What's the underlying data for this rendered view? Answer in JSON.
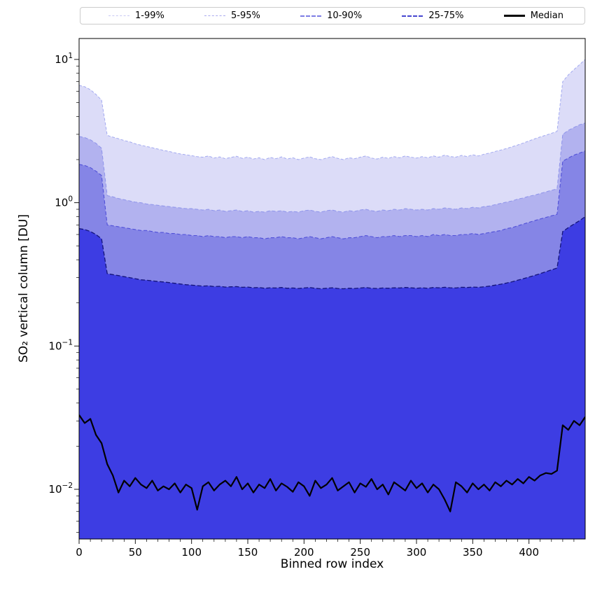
{
  "figure": {
    "legend": [
      {
        "label": "1-99%",
        "color": "#c9c9f4",
        "sample_style": "dashed",
        "sample_width": 1
      },
      {
        "label": "5-95%",
        "color": "#a9a9ee",
        "sample_style": "dashed",
        "sample_width": 1
      },
      {
        "label": "10-90%",
        "color": "#7d7de4",
        "sample_style": "dashed",
        "sample_width": 2
      },
      {
        "label": "25-75%",
        "color": "#4646d0",
        "sample_style": "dashed",
        "sample_width": 2
      },
      {
        "label": "Median",
        "color": "#000000",
        "sample_style": "solid",
        "sample_width": 3
      }
    ]
  },
  "chart_data": {
    "type": "area",
    "title": "",
    "xlabel": "Binned row index",
    "ylabel": "SO₂ vertical column [DU]",
    "y_scale": "log",
    "xlim": [
      0,
      450
    ],
    "ylim": [
      0.0045,
      14
    ],
    "x_ticks": [
      0,
      50,
      100,
      150,
      200,
      250,
      300,
      350,
      400
    ],
    "x_minor_step": 10,
    "y_ticks_exp": [
      -2,
      -1,
      0,
      1
    ],
    "x_start": 0,
    "x_step": 5,
    "series": [
      {
        "name": "p99",
        "band": "1-99%",
        "fill": "#dcdcf8",
        "line": "#a3aaf0",
        "dash": "4 2.5",
        "line_width": 1,
        "values": [
          6.6,
          6.45,
          6.15,
          5.7,
          5.2,
          2.95,
          2.87,
          2.8,
          2.72,
          2.66,
          2.58,
          2.52,
          2.47,
          2.42,
          2.37,
          2.32,
          2.28,
          2.23,
          2.19,
          2.16,
          2.13,
          2.1,
          2.08,
          2.12,
          2.05,
          2.09,
          2.03,
          2.07,
          2.11,
          2.04,
          2.08,
          2.02,
          2.06,
          2.0,
          2.07,
          2.03,
          2.09,
          2.02,
          2.06,
          2.0,
          2.05,
          2.09,
          2.03,
          2.0,
          2.05,
          2.1,
          2.04,
          2.0,
          2.06,
          2.03,
          2.08,
          2.12,
          2.05,
          2.02,
          2.08,
          2.04,
          2.1,
          2.06,
          2.12,
          2.08,
          2.05,
          2.1,
          2.06,
          2.12,
          2.08,
          2.15,
          2.1,
          2.08,
          2.14,
          2.1,
          2.16,
          2.12,
          2.18,
          2.22,
          2.28,
          2.33,
          2.39,
          2.46,
          2.53,
          2.61,
          2.7,
          2.79,
          2.88,
          2.96,
          3.05,
          3.15,
          7.0,
          7.8,
          8.5,
          9.2,
          10.0
        ]
      },
      {
        "name": "p95",
        "band": "5-95%",
        "fill": "#b2b2ef",
        "line": "#8d93ea",
        "dash": "5 3",
        "line_width": 1,
        "values": [
          2.9,
          2.85,
          2.75,
          2.6,
          2.4,
          1.12,
          1.1,
          1.07,
          1.05,
          1.03,
          1.01,
          1.0,
          0.98,
          0.97,
          0.96,
          0.95,
          0.94,
          0.93,
          0.92,
          0.91,
          0.91,
          0.9,
          0.89,
          0.9,
          0.88,
          0.89,
          0.87,
          0.88,
          0.89,
          0.87,
          0.88,
          0.86,
          0.87,
          0.86,
          0.88,
          0.87,
          0.88,
          0.86,
          0.87,
          0.86,
          0.88,
          0.89,
          0.87,
          0.86,
          0.88,
          0.89,
          0.87,
          0.86,
          0.88,
          0.87,
          0.89,
          0.9,
          0.88,
          0.87,
          0.89,
          0.88,
          0.9,
          0.89,
          0.91,
          0.9,
          0.89,
          0.9,
          0.89,
          0.91,
          0.9,
          0.92,
          0.91,
          0.9,
          0.92,
          0.91,
          0.93,
          0.92,
          0.94,
          0.95,
          0.97,
          0.99,
          1.01,
          1.03,
          1.06,
          1.08,
          1.11,
          1.13,
          1.16,
          1.19,
          1.22,
          1.25,
          3.0,
          3.2,
          3.35,
          3.5,
          3.6
        ]
      },
      {
        "name": "p90",
        "band": "10-90%",
        "fill": "#8585e6",
        "line": "#5050d8",
        "dash": "5 3",
        "line_width": 1.1,
        "values": [
          1.85,
          1.82,
          1.76,
          1.66,
          1.55,
          0.7,
          0.69,
          0.68,
          0.67,
          0.66,
          0.65,
          0.64,
          0.64,
          0.63,
          0.62,
          0.62,
          0.61,
          0.61,
          0.6,
          0.6,
          0.59,
          0.59,
          0.58,
          0.59,
          0.58,
          0.58,
          0.57,
          0.58,
          0.58,
          0.57,
          0.58,
          0.57,
          0.57,
          0.56,
          0.57,
          0.57,
          0.58,
          0.57,
          0.57,
          0.56,
          0.57,
          0.58,
          0.57,
          0.56,
          0.57,
          0.58,
          0.57,
          0.56,
          0.57,
          0.57,
          0.58,
          0.59,
          0.58,
          0.57,
          0.58,
          0.58,
          0.59,
          0.58,
          0.59,
          0.59,
          0.58,
          0.59,
          0.58,
          0.6,
          0.59,
          0.6,
          0.59,
          0.59,
          0.6,
          0.6,
          0.61,
          0.6,
          0.61,
          0.62,
          0.63,
          0.64,
          0.66,
          0.67,
          0.69,
          0.71,
          0.73,
          0.75,
          0.77,
          0.79,
          0.81,
          0.83,
          1.95,
          2.05,
          2.15,
          2.22,
          2.3
        ]
      },
      {
        "name": "p75",
        "band": "25-75%",
        "fill": "#3d3de3",
        "line": "#14147a",
        "dash": "6 3",
        "line_width": 1.3,
        "values": [
          0.66,
          0.65,
          0.63,
          0.6,
          0.56,
          0.32,
          0.315,
          0.31,
          0.305,
          0.3,
          0.295,
          0.29,
          0.288,
          0.285,
          0.282,
          0.28,
          0.277,
          0.274,
          0.271,
          0.268,
          0.266,
          0.264,
          0.262,
          0.263,
          0.26,
          0.261,
          0.258,
          0.259,
          0.26,
          0.257,
          0.258,
          0.255,
          0.256,
          0.253,
          0.255,
          0.254,
          0.256,
          0.253,
          0.254,
          0.252,
          0.254,
          0.256,
          0.253,
          0.251,
          0.253,
          0.255,
          0.252,
          0.251,
          0.253,
          0.252,
          0.254,
          0.256,
          0.253,
          0.252,
          0.254,
          0.253,
          0.255,
          0.254,
          0.256,
          0.255,
          0.253,
          0.255,
          0.253,
          0.256,
          0.255,
          0.257,
          0.255,
          0.254,
          0.257,
          0.256,
          0.258,
          0.257,
          0.259,
          0.262,
          0.266,
          0.27,
          0.275,
          0.281,
          0.288,
          0.295,
          0.303,
          0.311,
          0.32,
          0.33,
          0.34,
          0.35,
          0.63,
          0.67,
          0.71,
          0.75,
          0.8
        ]
      },
      {
        "name": "median",
        "band": "Median",
        "fill": null,
        "line": "#000000",
        "dash": null,
        "line_width": 2.2,
        "values": [
          0.033,
          0.029,
          0.031,
          0.024,
          0.021,
          0.015,
          0.0125,
          0.0095,
          0.0115,
          0.0105,
          0.012,
          0.0108,
          0.0102,
          0.0115,
          0.0098,
          0.0105,
          0.01,
          0.011,
          0.0095,
          0.0108,
          0.0102,
          0.0072,
          0.0105,
          0.0112,
          0.0098,
          0.0108,
          0.0115,
          0.0105,
          0.0122,
          0.01,
          0.011,
          0.0095,
          0.0108,
          0.0102,
          0.0118,
          0.0098,
          0.011,
          0.0104,
          0.0096,
          0.0112,
          0.0105,
          0.009,
          0.0115,
          0.0102,
          0.0108,
          0.012,
          0.0098,
          0.0105,
          0.0112,
          0.0095,
          0.011,
          0.0104,
          0.0118,
          0.01,
          0.0108,
          0.0092,
          0.0112,
          0.0105,
          0.0098,
          0.0115,
          0.0102,
          0.011,
          0.0095,
          0.0108,
          0.01,
          0.0085,
          0.007,
          0.0112,
          0.0105,
          0.0095,
          0.011,
          0.01,
          0.0108,
          0.0098,
          0.0112,
          0.0105,
          0.0115,
          0.0108,
          0.0118,
          0.011,
          0.0122,
          0.0115,
          0.0125,
          0.013,
          0.0128,
          0.0135,
          0.028,
          0.026,
          0.03,
          0.028,
          0.032
        ]
      }
    ]
  }
}
